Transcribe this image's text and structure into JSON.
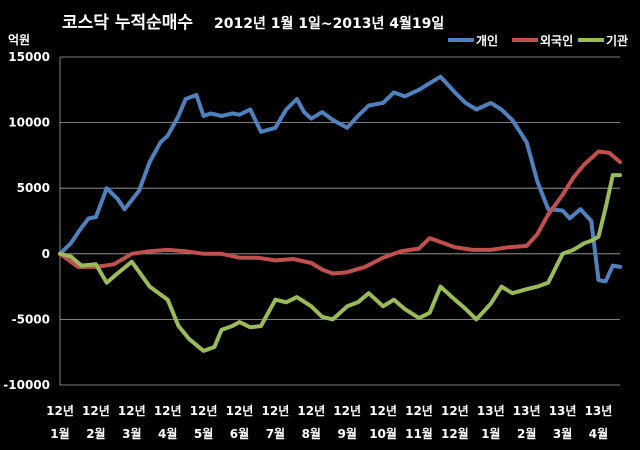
{
  "chart_data": {
    "type": "line",
    "title_main": "코스닥  누적순매수",
    "title_sub": "2012년 1월 1일~2013년 4월19일",
    "unit_label": "억원",
    "ylim": [
      -10000,
      15000
    ],
    "y_ticks": [
      15000,
      10000,
      5000,
      0,
      -5000,
      -10000
    ],
    "grid": true,
    "legend_position": "top-right",
    "x_months": [
      {
        "year": "12년",
        "month": "1월"
      },
      {
        "year": "12년",
        "month": "2월"
      },
      {
        "year": "12년",
        "month": "3월"
      },
      {
        "year": "12년",
        "month": "4월"
      },
      {
        "year": "12년",
        "month": "5월"
      },
      {
        "year": "12년",
        "month": "6월"
      },
      {
        "year": "12년",
        "month": "7월"
      },
      {
        "year": "12년",
        "month": "8월"
      },
      {
        "year": "12년",
        "month": "9월"
      },
      {
        "year": "12년",
        "month": "10월"
      },
      {
        "year": "12년",
        "month": "11월"
      },
      {
        "year": "12년",
        "month": "12월"
      },
      {
        "year": "13년",
        "month": "1월"
      },
      {
        "year": "13년",
        "month": "2월"
      },
      {
        "year": "13년",
        "month": "3월"
      },
      {
        "year": "13년",
        "month": "4월"
      }
    ],
    "x_range": [
      0,
      15.6
    ],
    "series": [
      {
        "name": "개인",
        "color": "#4f81bd",
        "x": [
          0,
          0.3,
          0.6,
          0.8,
          1.0,
          1.3,
          1.6,
          1.8,
          2.0,
          2.2,
          2.5,
          2.8,
          3.0,
          3.3,
          3.5,
          3.8,
          4.0,
          4.2,
          4.5,
          4.8,
          5.0,
          5.3,
          5.6,
          6.0,
          6.3,
          6.6,
          6.8,
          7.0,
          7.3,
          7.6,
          8.0,
          8.3,
          8.6,
          9.0,
          9.3,
          9.6,
          10.0,
          10.3,
          10.6,
          11.0,
          11.3,
          11.6,
          12.0,
          12.3,
          12.6,
          13.0,
          13.3,
          13.6,
          14.0,
          14.2,
          14.5,
          14.8,
          15.0,
          15.2,
          15.4,
          15.6
        ],
        "values": [
          0,
          800,
          2000,
          2700,
          2800,
          5000,
          4200,
          3400,
          4100,
          4800,
          7000,
          8500,
          9000,
          10500,
          11800,
          12100,
          10500,
          10700,
          10500,
          10700,
          10600,
          11000,
          9300,
          9600,
          11000,
          11800,
          10800,
          10300,
          10800,
          10200,
          9600,
          10500,
          11300,
          11500,
          12300,
          12000,
          12500,
          13000,
          13500,
          12300,
          11500,
          11000,
          11500,
          11000,
          10200,
          8500,
          5500,
          3400,
          3300,
          2700,
          3400,
          2500,
          -2000,
          -2100,
          -900,
          -1000
        ]
      },
      {
        "name": "외국인",
        "color": "#c0504d",
        "x": [
          0,
          0.5,
          1.0,
          1.5,
          2.0,
          2.5,
          3.0,
          3.5,
          4.0,
          4.5,
          5.0,
          5.5,
          6.0,
          6.5,
          7.0,
          7.3,
          7.6,
          8.0,
          8.5,
          9.0,
          9.5,
          10.0,
          10.3,
          10.6,
          11.0,
          11.5,
          12.0,
          12.5,
          13.0,
          13.3,
          13.6,
          14.0,
          14.3,
          14.6,
          15.0,
          15.3,
          15.6
        ],
        "values": [
          0,
          -1000,
          -1000,
          -800,
          0,
          200,
          300,
          200,
          0,
          0,
          -300,
          -300,
          -500,
          -400,
          -700,
          -1200,
          -1500,
          -1400,
          -1000,
          -300,
          200,
          400,
          1200,
          900,
          500,
          300,
          300,
          500,
          600,
          1500,
          3000,
          4500,
          5800,
          6800,
          7800,
          7700,
          7000
        ]
      },
      {
        "name": "기관",
        "color": "#9bbb59",
        "x": [
          0,
          0.3,
          0.6,
          1.0,
          1.3,
          1.6,
          2.0,
          2.5,
          3.0,
          3.3,
          3.6,
          4.0,
          4.3,
          4.5,
          4.8,
          5.0,
          5.3,
          5.6,
          6.0,
          6.3,
          6.6,
          7.0,
          7.3,
          7.6,
          8.0,
          8.3,
          8.6,
          9.0,
          9.3,
          9.6,
          10.0,
          10.3,
          10.6,
          11.0,
          11.3,
          11.6,
          12.0,
          12.3,
          12.6,
          13.0,
          13.3,
          13.6,
          14.0,
          14.3,
          14.6,
          14.8,
          15.0,
          15.2,
          15.4,
          15.6
        ],
        "values": [
          0,
          -200,
          -900,
          -800,
          -2200,
          -1500,
          -600,
          -2500,
          -3500,
          -5500,
          -6500,
          -7400,
          -7100,
          -5800,
          -5500,
          -5200,
          -5600,
          -5500,
          -3500,
          -3700,
          -3300,
          -4000,
          -4800,
          -5000,
          -4000,
          -3700,
          -3000,
          -4000,
          -3500,
          -4200,
          -4900,
          -4500,
          -2500,
          -3500,
          -4200,
          -5000,
          -3800,
          -2500,
          -3000,
          -2700,
          -2500,
          -2200,
          0,
          300,
          800,
          1000,
          1300,
          3500,
          6000,
          6000
        ]
      }
    ]
  }
}
